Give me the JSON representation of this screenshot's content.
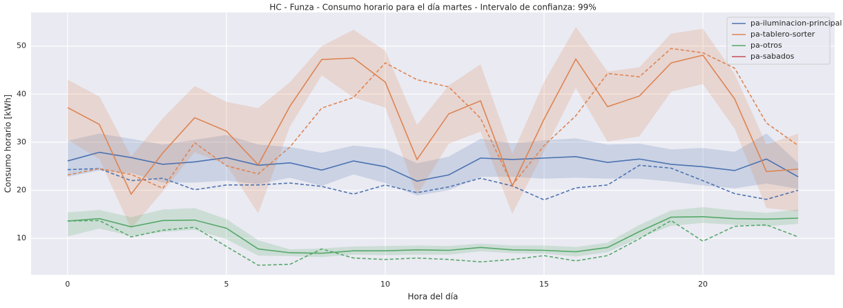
{
  "chart_data": {
    "type": "line",
    "title": "HC - Funza - Consumo horario para el día martes - Intervalo de confianza: 99%",
    "xlabel": "Hora del día",
    "ylabel": "Consumo horario [kWh]",
    "x": [
      0,
      1,
      2,
      3,
      4,
      5,
      6,
      7,
      8,
      9,
      10,
      11,
      12,
      13,
      14,
      15,
      16,
      17,
      18,
      19,
      20,
      21,
      22,
      23
    ],
    "xlim": [
      -1.15,
      24.15
    ],
    "ylim": [
      2.4,
      57
    ],
    "xticks": [
      0,
      5,
      10,
      15,
      20
    ],
    "yticks": [
      10,
      20,
      30,
      40,
      50
    ],
    "grid": true,
    "legend": "upper right",
    "series": [
      {
        "name": "pa-iluminacion-principal",
        "color": "#4c72b0",
        "values": [
          26.1,
          27.9,
          26.8,
          25.4,
          25.9,
          26.8,
          25.2,
          25.7,
          24.2,
          26.1,
          24.9,
          21.9,
          23.2,
          26.7,
          26.4,
          26.7,
          27.0,
          25.8,
          26.5,
          25.4,
          24.9,
          24.1,
          26.5,
          22.8
        ],
        "comparison_values": [
          24.3,
          24.5,
          22.0,
          22.5,
          20.1,
          21.1,
          21.1,
          21.5,
          20.8,
          19.2,
          21.1,
          19.5,
          20.7,
          22.5,
          20.9,
          18.0,
          20.5,
          21.1,
          25.2,
          24.6,
          22.0,
          19.3,
          18.1,
          20.0
        ],
        "ci_upper": [
          30.3,
          31.8,
          30.7,
          29.5,
          30.5,
          31.5,
          29.5,
          29.0,
          27.8,
          29.3,
          28.6,
          25.6,
          27.0,
          30.7,
          29.8,
          30.4,
          30.8,
          29.5,
          29.7,
          28.5,
          28.8,
          28.0,
          31.8,
          25.7
        ],
        "ci_lower": [
          22.8,
          24.1,
          23.6,
          21.6,
          21.6,
          22.0,
          21.3,
          22.6,
          20.9,
          23.3,
          21.5,
          18.9,
          20.0,
          22.8,
          22.8,
          22.4,
          22.6,
          22.4,
          22.4,
          21.8,
          21.0,
          20.4,
          21.4,
          20.3
        ]
      },
      {
        "name": "pa-tablero-sorter",
        "color": "#dd8452",
        "values": [
          37.2,
          33.7,
          19.2,
          27.8,
          35.1,
          32.3,
          25.3,
          37.5,
          47.2,
          47.5,
          42.5,
          26.4,
          35.9,
          38.6,
          20.9,
          34.8,
          47.3,
          37.4,
          39.6,
          46.5,
          48.1,
          39.0,
          23.9,
          24.4
        ],
        "comparison_values": [
          23.2,
          24.5,
          23.3,
          20.4,
          29.9,
          25.1,
          23.4,
          29.0,
          37.1,
          39.3,
          46.5,
          43.0,
          41.5,
          35.0,
          21.1,
          29.3,
          35.5,
          44.3,
          43.6,
          49.5,
          48.6,
          45.4,
          34.0,
          29.3
        ],
        "ci_upper": [
          43.0,
          39.5,
          27.0,
          35.0,
          41.7,
          38.4,
          37.1,
          42.5,
          50.0,
          53.4,
          49.0,
          33.6,
          41.8,
          46.2,
          27.5,
          42.5,
          54.0,
          44.7,
          45.6,
          52.6,
          53.6,
          44.2,
          29.5,
          31.8
        ],
        "ci_lower": [
          30.5,
          26.5,
          12.0,
          19.8,
          27.9,
          25.3,
          15.2,
          33.3,
          43.9,
          39.3,
          37.2,
          19.0,
          29.7,
          32.2,
          15.1,
          28.1,
          41.3,
          30.1,
          31.2,
          40.5,
          42.1,
          32.8,
          16.3,
          15.6
        ]
      },
      {
        "name": "pa-otros",
        "color": "#55a868",
        "values": [
          13.6,
          14.1,
          12.4,
          13.7,
          13.8,
          12.1,
          7.8,
          7.0,
          6.9,
          7.4,
          7.4,
          7.6,
          7.5,
          8.1,
          7.6,
          7.5,
          7.2,
          8.1,
          11.4,
          14.4,
          14.5,
          14.1,
          14.0,
          14.2
        ],
        "comparison_values": [
          13.6,
          13.7,
          10.3,
          11.7,
          12.3,
          8.3,
          4.4,
          4.6,
          7.8,
          5.9,
          5.6,
          5.9,
          5.6,
          5.1,
          5.6,
          6.4,
          5.3,
          6.4,
          9.9,
          13.7,
          9.4,
          12.5,
          12.8,
          10.3
        ],
        "ci_upper": [
          15.4,
          15.9,
          14.4,
          16.0,
          16.3,
          14.0,
          9.6,
          7.7,
          7.9,
          8.3,
          8.4,
          8.5,
          8.4,
          8.9,
          8.5,
          8.5,
          8.2,
          9.1,
          12.8,
          15.8,
          16.5,
          15.8,
          15.3,
          16.0
        ],
        "ci_lower": [
          10.4,
          12.0,
          10.5,
          11.3,
          11.8,
          9.8,
          6.4,
          6.3,
          6.1,
          6.6,
          6.5,
          6.6,
          6.6,
          7.3,
          6.9,
          6.8,
          6.2,
          7.1,
          10.1,
          12.6,
          13.2,
          12.8,
          12.5,
          13.0
        ]
      },
      {
        "name": "pa-sabados",
        "color": "#c44e52",
        "values": [
          null,
          null,
          null,
          null,
          null,
          null,
          null,
          null,
          null,
          null,
          null,
          null,
          null,
          null,
          null,
          null,
          null,
          null,
          null,
          null,
          null,
          null,
          null,
          null
        ]
      }
    ]
  }
}
